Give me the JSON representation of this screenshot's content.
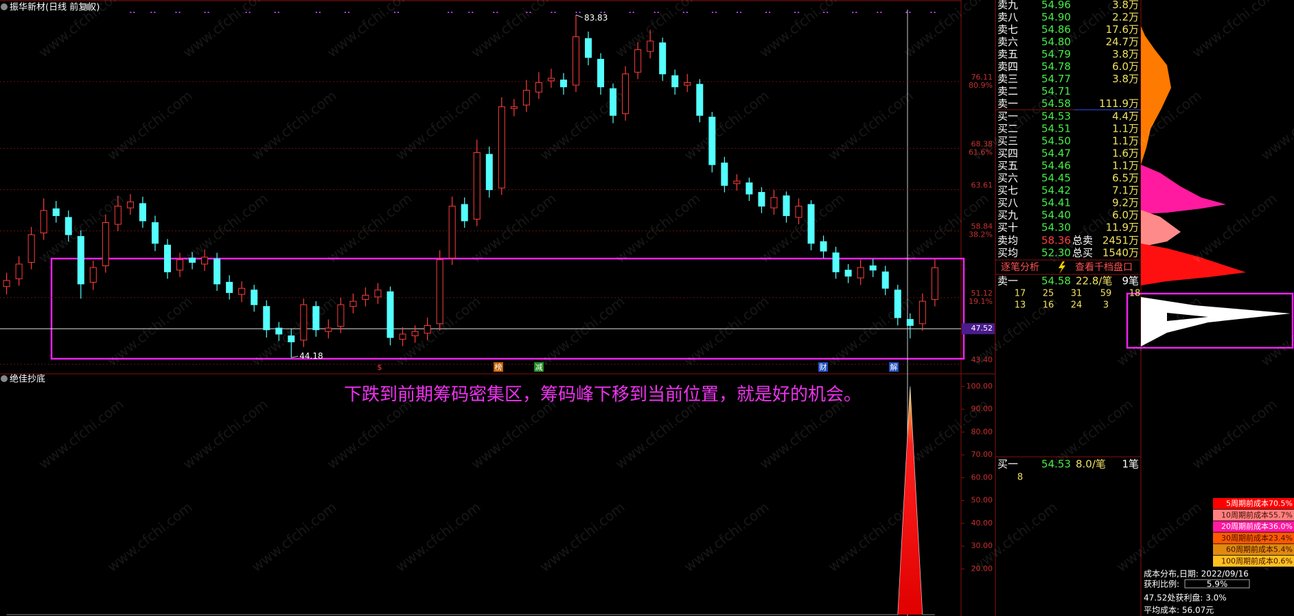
{
  "header": {
    "title": "振华新材(日线 前复权)"
  },
  "watermark": "www.cfchi.com",
  "chart_data": {
    "type": "candlestick",
    "open": [
      52.4,
      53.3,
      55.2,
      58.6,
      61.4,
      60.4,
      58.2,
      52.9,
      54.8,
      59.6,
      61.5,
      62.0,
      59.8,
      57.2,
      54.3,
      55.7,
      55.0,
      55.6,
      52.9,
      51.5,
      52.0,
      50.1,
      47.6,
      46.7,
      46.2,
      50.1,
      47.2,
      47.8,
      50.1,
      50.9,
      51.2,
      51.8,
      46.3,
      46.7,
      47.0,
      48.1,
      55.7,
      61.9,
      60.2,
      67.7,
      63.8,
      73.0,
      73.4,
      74.9,
      76.2,
      76.3,
      75.7,
      81.1,
      78.7,
      75.3,
      72.4,
      77.2,
      79.6,
      80.6,
      76.8,
      75.7,
      75.8,
      72.0,
      66.7,
      64.3,
      64.4,
      63.3,
      61.5,
      62.9,
      60.4,
      61.9,
      57.6,
      56.3,
      54.3,
      53.4,
      54.8,
      54.1,
      52.0,
      48.6,
      48.1,
      50.9
    ],
    "high": [
      54.0,
      55.9,
      59.3,
      62.6,
      62.3,
      61.2,
      58.9,
      55.4,
      60.7,
      62.9,
      63.1,
      62.8,
      60.6,
      57.9,
      56.3,
      56.4,
      56.7,
      56.3,
      53.7,
      53.0,
      52.6,
      50.8,
      48.3,
      47.5,
      51.0,
      50.7,
      48.6,
      51.1,
      51.6,
      52.3,
      52.8,
      52.4,
      47.7,
      47.9,
      48.8,
      56.6,
      62.8,
      62.7,
      69.4,
      68.6,
      74.3,
      74.1,
      76.3,
      77.2,
      77.6,
      77.1,
      83.83,
      81.9,
      79.4,
      75.9,
      77.9,
      80.7,
      82.1,
      81.2,
      77.5,
      77.0,
      76.4,
      72.6,
      67.4,
      65.4,
      65.0,
      63.9,
      63.6,
      63.4,
      62.6,
      62.4,
      58.3,
      57.0,
      55.0,
      55.5,
      55.6,
      54.8,
      52.6,
      49.3,
      51.6,
      55.6
    ],
    "low": [
      51.5,
      52.5,
      54.4,
      57.8,
      59.8,
      57.6,
      51.0,
      52.0,
      54.0,
      58.8,
      60.7,
      59.2,
      56.5,
      53.3,
      53.5,
      54.4,
      54.2,
      51.9,
      50.9,
      50.6,
      49.5,
      46.5,
      46.1,
      44.18,
      45.4,
      46.6,
      46.4,
      47.0,
      49.3,
      50.1,
      50.4,
      45.6,
      45.5,
      45.9,
      46.2,
      47.3,
      54.9,
      59.2,
      59.4,
      62.7,
      63.0,
      72.1,
      72.6,
      74.1,
      75.4,
      74.6,
      74.9,
      78.0,
      74.6,
      71.3,
      71.6,
      76.4,
      78.8,
      76.2,
      74.6,
      74.9,
      71.4,
      65.6,
      63.3,
      63.5,
      62.3,
      60.9,
      60.7,
      59.8,
      59.6,
      56.6,
      55.7,
      53.3,
      52.8,
      52.6,
      53.5,
      51.4,
      47.9,
      46.4,
      47.3,
      50.1
    ],
    "close": [
      53.1,
      55.0,
      58.4,
      61.2,
      60.6,
      58.4,
      52.7,
      54.6,
      59.8,
      61.7,
      62.2,
      60.0,
      57.4,
      54.1,
      55.5,
      55.2,
      55.8,
      52.7,
      51.7,
      52.2,
      50.3,
      47.4,
      46.9,
      46.0,
      50.3,
      47.4,
      47.6,
      50.3,
      50.7,
      51.4,
      52.0,
      46.5,
      46.9,
      47.2,
      47.9,
      55.5,
      61.7,
      60.0,
      67.9,
      63.6,
      73.2,
      73.2,
      75.1,
      76.0,
      76.5,
      75.5,
      81.3,
      78.9,
      75.5,
      72.2,
      77.0,
      79.8,
      80.8,
      77.0,
      75.5,
      76.0,
      72.2,
      66.5,
      64.1,
      64.6,
      63.1,
      61.7,
      62.7,
      60.6,
      61.7,
      57.4,
      56.5,
      54.1,
      53.6,
      54.6,
      54.3,
      52.2,
      48.8,
      47.9,
      50.7,
      54.58
    ],
    "ylim": [
      42.3,
      84.6
    ],
    "yticks": [
      76.11,
      68.38,
      63.61,
      58.84,
      51.12,
      {
        "value": 43.4,
        "label": "43.40"
      }
    ],
    "ytick_pct": [
      {
        "value": 76.11,
        "label": "80.9%"
      },
      {
        "value": 68.38,
        "label": "61.6%"
      },
      {
        "value": 58.84,
        "label": "38.2%"
      },
      {
        "value": 51.12,
        "label": "19.1%"
      }
    ],
    "ref_line": 47.52,
    "up_color": "#ff3c3c",
    "down_color": "#54ffff",
    "annotation": "下跌到前期筹码密集区，筹码峰下移到当前位置，就是好的机会。",
    "event_markers": [
      "$",
      "榜",
      "减",
      "财",
      "解"
    ]
  },
  "indicator": {
    "title": "绝佳抄底",
    "ylim": [
      0,
      104
    ],
    "yticks": [
      {
        "value": 100,
        "label": "100.00"
      },
      {
        "value": 90,
        "label": "90.00"
      },
      {
        "value": 80,
        "label": "80.00"
      },
      {
        "value": 70,
        "label": "70.00"
      },
      {
        "value": 60,
        "label": "60.00"
      },
      {
        "value": 50,
        "label": "50.00"
      },
      {
        "value": 40,
        "label": "40.00"
      },
      {
        "value": 30,
        "label": "30.00"
      },
      {
        "value": 20,
        "label": "20.00"
      }
    ],
    "values": [
      0,
      0,
      0,
      0,
      0,
      0,
      0,
      0,
      0,
      0,
      0,
      0,
      0,
      0,
      0,
      0,
      0,
      0,
      0,
      0,
      0,
      0,
      0,
      0,
      0,
      0,
      0,
      0,
      0,
      0,
      0,
      0,
      0,
      0,
      0,
      0,
      0,
      0,
      0,
      0,
      0,
      0,
      0,
      0,
      0,
      0,
      0,
      0,
      0,
      0,
      0,
      0,
      0,
      0,
      0,
      0,
      0,
      0,
      0,
      0,
      0,
      0,
      0,
      0,
      0,
      0,
      0,
      0,
      0,
      0,
      0,
      0,
      0,
      100,
      0,
      0
    ]
  },
  "order_book": {
    "asks": [
      [
        "卖九",
        "54.96",
        "3.8万"
      ],
      [
        "卖八",
        "54.90",
        "2.2万"
      ],
      [
        "卖七",
        "54.86",
        "17.6万"
      ],
      [
        "卖六",
        "54.80",
        "24.7万"
      ],
      [
        "卖五",
        "54.79",
        "3.8万"
      ],
      [
        "卖四",
        "54.78",
        "6.0万"
      ],
      [
        "卖三",
        "54.77",
        "3.8万"
      ],
      [
        "卖二",
        "54.71"
      ],
      [
        "卖一",
        "54.58",
        "111.9万"
      ]
    ],
    "bids": [
      [
        "买一",
        "54.53",
        "4.4万"
      ],
      [
        "买二",
        "54.51",
        "1.1万"
      ],
      [
        "买三",
        "54.50",
        "1.1万"
      ],
      [
        "买四",
        "54.47",
        "1.6万"
      ],
      [
        "买五",
        "54.46",
        "1.1万"
      ],
      [
        "买六",
        "54.45",
        "6.5万"
      ],
      [
        "买七",
        "54.42",
        "7.1万"
      ],
      [
        "买八",
        "54.41",
        "9.2万"
      ],
      [
        "买九",
        "54.40",
        "6.0万"
      ],
      [
        "买十",
        "54.30",
        "11.9万"
      ]
    ],
    "avg_sell": [
      "卖均",
      "58.36",
      "总卖",
      "2451万"
    ],
    "avg_buy": [
      "买均",
      "52.30",
      "总买",
      "1540万"
    ],
    "buttons": [
      "逐笔分析",
      "查看千档盘口"
    ],
    "sell_one": [
      "卖一",
      "54.58",
      "22.8/笔",
      "9笔"
    ],
    "sell_one_counts": [
      [
        "17",
        "25",
        "31",
        "59",
        "18"
      ],
      [
        "13",
        "16",
        "24",
        "3"
      ]
    ],
    "buy_one": [
      "买一",
      "54.53",
      "8.0/笔",
      "1笔"
    ],
    "buy_one_counts": [
      "8"
    ]
  },
  "chip": {
    "legend": [
      {
        "label": "5周期前成本70.5%",
        "color": "#ff0000"
      },
      {
        "label": "10周期前成本55.7%",
        "color": "#ff8080"
      },
      {
        "label": "20周期前成本36.0%",
        "color": "#ff1aa0"
      },
      {
        "label": "30周期前成本23.4%",
        "color": "#ff5a00"
      },
      {
        "label": "60周期前成本5.4%",
        "color": "#e08a10"
      },
      {
        "label": "100周期前成本0.6%",
        "color": "#ffc020"
      }
    ],
    "date_label": "成本分布,日期: 2022/09/16",
    "profit_label": "获利比例:",
    "profit_value": "5.9%",
    "profit_at": "47.52处获利盘: 3.0%",
    "avg_cost": "平均成本: 56.07元"
  }
}
